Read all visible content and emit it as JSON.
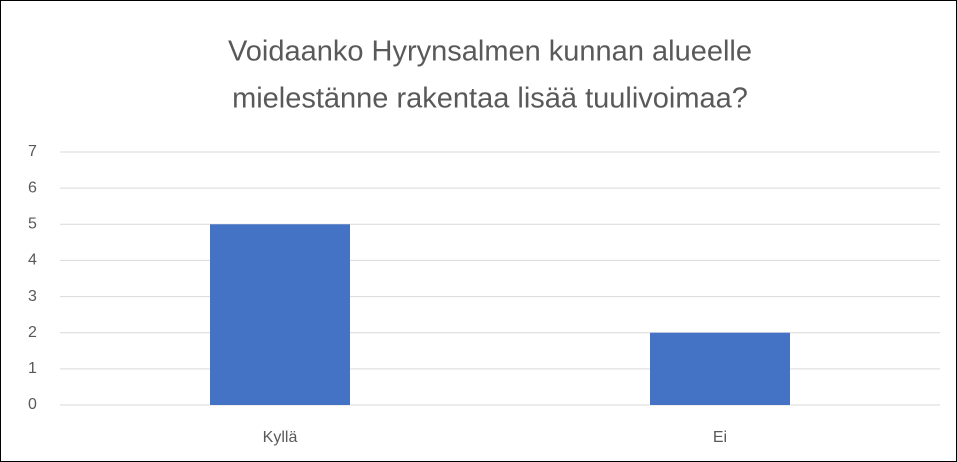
{
  "chart_data": {
    "type": "bar",
    "title": [
      "Voidaanko Hyrynsalmen kunnan alueelle",
      "mielestänne rakentaa lisää tuulivoimaa?"
    ],
    "categories": [
      "Kyllä",
      "Ei"
    ],
    "values": [
      5,
      2
    ],
    "color": "#4472c4",
    "ylim": [
      0,
      7
    ],
    "yticks": [
      0,
      1,
      2,
      3,
      4,
      5,
      6,
      7
    ],
    "grid": true
  }
}
